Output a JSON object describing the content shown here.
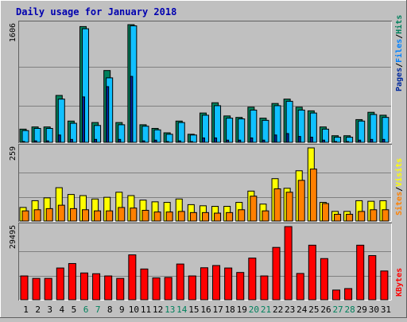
{
  "title": "Daily usage for January 2018",
  "colors": {
    "background": "#c0c0c0",
    "title_text": "#0000b0",
    "grid_line": "#808080",
    "hits": "#00805c",
    "files": "#0080ff",
    "files_light": "#10c0ff",
    "pages": "#00289c",
    "visits": "#ffff00",
    "sites": "#ff8000",
    "kbytes": "#ff0000",
    "weekday_label": "#000000",
    "weekend_label": "#00805c"
  },
  "chart_data": [
    {
      "type": "bar",
      "panel": "hits-files-pages",
      "axis_max_label": "1606",
      "ylim": [
        0,
        1606
      ],
      "legend": [
        "Pages",
        "/",
        "Files",
        "/",
        "Hits"
      ],
      "categories": [
        "1",
        "2",
        "3",
        "4",
        "5",
        "6",
        "7",
        "8",
        "9",
        "10",
        "11",
        "12",
        "13",
        "14",
        "15",
        "16",
        "17",
        "18",
        "19",
        "20",
        "21",
        "22",
        "23",
        "24",
        "25",
        "26",
        "27",
        "28",
        "29",
        "30",
        "31"
      ],
      "series": [
        {
          "name": "Hits",
          "values": [
            180,
            210,
            210,
            640,
            290,
            1580,
            270,
            980,
            270,
            1606,
            240,
            190,
            130,
            290,
            110,
            400,
            540,
            360,
            340,
            480,
            330,
            530,
            590,
            480,
            430,
            210,
            90,
            90,
            310,
            410,
            370
          ]
        },
        {
          "name": "Files",
          "values": [
            160,
            190,
            190,
            590,
            260,
            1550,
            230,
            880,
            240,
            1590,
            220,
            170,
            110,
            270,
            100,
            370,
            500,
            330,
            320,
            440,
            300,
            500,
            560,
            440,
            400,
            180,
            70,
            70,
            290,
            380,
            340
          ]
        },
        {
          "name": "Pages",
          "values": [
            10,
            20,
            20,
            100,
            40,
            620,
            40,
            760,
            40,
            900,
            20,
            30,
            10,
            20,
            5,
            60,
            60,
            30,
            30,
            60,
            30,
            100,
            120,
            80,
            70,
            30,
            5,
            5,
            30,
            40,
            40
          ]
        }
      ]
    },
    {
      "type": "bar",
      "panel": "visits-sites",
      "axis_max_label": "259",
      "ylim": [
        0,
        259
      ],
      "legend": [
        "Sites",
        "/",
        "Visits"
      ],
      "categories": [
        "1",
        "2",
        "3",
        "4",
        "5",
        "6",
        "7",
        "8",
        "9",
        "10",
        "11",
        "12",
        "13",
        "14",
        "15",
        "16",
        "17",
        "18",
        "19",
        "20",
        "21",
        "22",
        "23",
        "24",
        "25",
        "26",
        "27",
        "28",
        "29",
        "30",
        "31"
      ],
      "series": [
        {
          "name": "Visits",
          "values": [
            48,
            72,
            82,
            118,
            94,
            90,
            78,
            84,
            102,
            90,
            74,
            68,
            66,
            78,
            58,
            54,
            52,
            52,
            66,
            106,
            60,
            150,
            116,
            178,
            259,
            66,
            34,
            34,
            72,
            70,
            72
          ]
        },
        {
          "name": "Sites",
          "values": [
            36,
            40,
            44,
            56,
            44,
            40,
            36,
            36,
            48,
            46,
            38,
            32,
            32,
            34,
            30,
            30,
            28,
            30,
            40,
            88,
            36,
            114,
            102,
            144,
            184,
            62,
            24,
            24,
            34,
            40,
            40
          ]
        }
      ]
    },
    {
      "type": "bar",
      "panel": "kbytes",
      "axis_max_label": "29495",
      "ylim": [
        0,
        29495
      ],
      "legend": [
        "KBytes"
      ],
      "categories": [
        "1",
        "2",
        "3",
        "4",
        "5",
        "6",
        "7",
        "8",
        "9",
        "10",
        "11",
        "12",
        "13",
        "14",
        "15",
        "16",
        "17",
        "18",
        "19",
        "20",
        "21",
        "22",
        "23",
        "24",
        "25",
        "26",
        "27",
        "28",
        "29",
        "30",
        "31"
      ],
      "weekend_days": [
        "6",
        "7",
        "13",
        "14",
        "20",
        "21",
        "27",
        "28"
      ],
      "series": [
        {
          "name": "KBytes",
          "values": [
            9600,
            8600,
            8600,
            12800,
            14600,
            10800,
            10500,
            9600,
            8600,
            18100,
            12400,
            8800,
            9000,
            14400,
            9600,
            12900,
            13800,
            12800,
            11000,
            16800,
            9600,
            21100,
            29495,
            10600,
            22000,
            16600,
            3900,
            4500,
            22000,
            17800,
            11600
          ]
        }
      ]
    }
  ]
}
